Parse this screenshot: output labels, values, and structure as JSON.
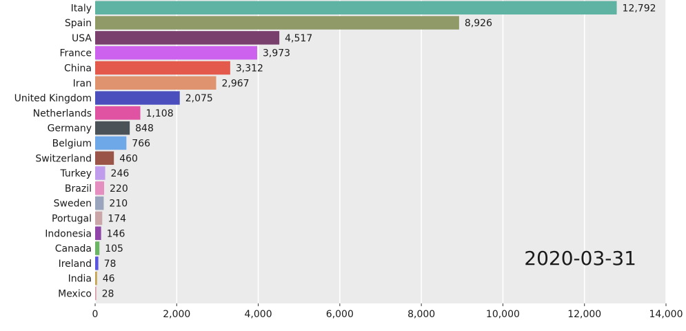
{
  "chart_data": {
    "type": "bar",
    "orientation": "horizontal",
    "title": "",
    "xlabel": "",
    "ylabel": "",
    "xlim": [
      0,
      14000
    ],
    "ticks": [
      0,
      2000,
      4000,
      6000,
      8000,
      10000,
      12000,
      14000
    ],
    "tick_labels": [
      "0",
      "2,000",
      "4,000",
      "6,000",
      "8,000",
      "10,000",
      "12,000",
      "14,000"
    ],
    "grid": true,
    "date_annotation": "2020-03-31",
    "categories": [
      "Italy",
      "Spain",
      "USA",
      "France",
      "China",
      "Iran",
      "United Kingdom",
      "Netherlands",
      "Germany",
      "Belgium",
      "Switzerland",
      "Turkey",
      "Brazil",
      "Sweden",
      "Portugal",
      "Indonesia",
      "Canada",
      "Ireland",
      "India",
      "Mexico"
    ],
    "values": [
      12792,
      8926,
      4517,
      3973,
      3312,
      2967,
      2075,
      1108,
      848,
      766,
      460,
      246,
      220,
      210,
      174,
      146,
      105,
      78,
      46,
      28
    ],
    "value_labels": [
      "12,792",
      "8,926",
      "4,517",
      "3,973",
      "3,312",
      "2,967",
      "2,075",
      "1,108",
      "848",
      "766",
      "460",
      "246",
      "220",
      "210",
      "174",
      "146",
      "105",
      "78",
      "46",
      "28"
    ],
    "colors": [
      "#5fb3a2",
      "#8f9a68",
      "#793f6d",
      "#cd62ef",
      "#e35a4d",
      "#e0936f",
      "#4a4fbd",
      "#df53a2",
      "#4b5258",
      "#6fa8e8",
      "#9a5548",
      "#bf9cec",
      "#e48fbf",
      "#9aa5bd",
      "#caa6a8",
      "#8f46a8",
      "#6ab463",
      "#5a55e0",
      "#c7a24f",
      "#d99aa2"
    ]
  }
}
